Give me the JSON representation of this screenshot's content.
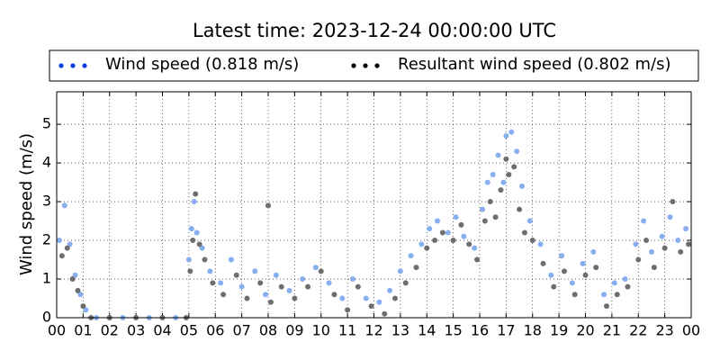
{
  "chart_data": {
    "type": "scatter",
    "title": "Latest time: 2023-12-24 00:00:00 UTC",
    "ylabel": "Wind speed (m/s)",
    "xlim": [
      0,
      24
    ],
    "ylim": [
      0,
      5.84
    ],
    "xticks": [
      {
        "value": 0,
        "label": "00"
      },
      {
        "value": 1,
        "label": "01"
      },
      {
        "value": 2,
        "label": "02"
      },
      {
        "value": 3,
        "label": "03"
      },
      {
        "value": 4,
        "label": "04"
      },
      {
        "value": 5,
        "label": "05"
      },
      {
        "value": 6,
        "label": "06"
      },
      {
        "value": 7,
        "label": "07"
      },
      {
        "value": 8,
        "label": "08"
      },
      {
        "value": 9,
        "label": "09"
      },
      {
        "value": 10,
        "label": "10"
      },
      {
        "value": 11,
        "label": "11"
      },
      {
        "value": 12,
        "label": "12"
      },
      {
        "value": 13,
        "label": "13"
      },
      {
        "value": 14,
        "label": "14"
      },
      {
        "value": 15,
        "label": "15"
      },
      {
        "value": 16,
        "label": "16"
      },
      {
        "value": 17,
        "label": "17"
      },
      {
        "value": 18,
        "label": "18"
      },
      {
        "value": 19,
        "label": "19"
      },
      {
        "value": 20,
        "label": "20"
      },
      {
        "value": 21,
        "label": "21"
      },
      {
        "value": 22,
        "label": "22"
      },
      {
        "value": 23,
        "label": "23"
      },
      {
        "value": 24,
        "label": "00"
      }
    ],
    "yticks": [
      0,
      1,
      2,
      3,
      4,
      5
    ],
    "grid": true,
    "series": [
      {
        "name": "Wind speed (0.818 m/s)",
        "color": "#0a3ee0",
        "point_color": "#86aef0",
        "x": [
          0.1,
          0.3,
          0.5,
          0.7,
          0.9,
          1.1,
          1.5,
          2.5,
          3.5,
          4.5,
          5.0,
          5.1,
          5.2,
          5.3,
          5.5,
          5.8,
          6.2,
          6.6,
          7.0,
          7.5,
          7.9,
          8.0,
          8.3,
          8.8,
          9.3,
          9.8,
          10.3,
          10.8,
          11.2,
          11.7,
          12.2,
          12.6,
          13.0,
          13.4,
          13.8,
          14.1,
          14.4,
          14.8,
          15.1,
          15.4,
          15.8,
          16.1,
          16.3,
          16.5,
          16.7,
          16.9,
          17.0,
          17.2,
          17.4,
          17.6,
          17.9,
          18.3,
          18.7,
          19.1,
          19.5,
          19.9,
          20.3,
          20.7,
          21.1,
          21.5,
          21.9,
          22.2,
          22.5,
          22.9,
          23.2,
          23.5,
          23.8
        ],
        "values": [
          2.0,
          2.9,
          1.9,
          1.1,
          0.6,
          0.2,
          0,
          0,
          0,
          0,
          1.5,
          2.3,
          3.0,
          2.2,
          1.8,
          1.2,
          0.9,
          1.5,
          0.8,
          1.2,
          0.6,
          2.9,
          1.1,
          0.7,
          1.0,
          1.3,
          0.9,
          0.5,
          1.0,
          0.5,
          0.4,
          0.7,
          1.2,
          1.6,
          1.9,
          2.3,
          2.5,
          2.2,
          2.6,
          2.1,
          1.8,
          2.8,
          3.5,
          3.7,
          4.2,
          3.5,
          4.7,
          4.8,
          4.3,
          3.4,
          2.5,
          1.9,
          1.1,
          1.6,
          0.9,
          1.4,
          1.7,
          0.6,
          0.9,
          1.0,
          1.9,
          2.5,
          1.7,
          2.1,
          2.6,
          2.0,
          2.3
        ]
      },
      {
        "name": "Resultant wind speed (0.802 m/s)",
        "color": "#000000",
        "point_color": "#6e6e6e",
        "x": [
          0.2,
          0.4,
          0.6,
          0.8,
          1.0,
          1.3,
          2.0,
          3.0,
          4.0,
          4.9,
          5.05,
          5.15,
          5.25,
          5.4,
          5.6,
          5.9,
          6.3,
          6.8,
          7.2,
          7.7,
          8.0,
          8.1,
          8.5,
          9.0,
          9.5,
          10.0,
          10.5,
          11.0,
          11.4,
          11.9,
          12.4,
          12.8,
          13.2,
          13.6,
          14.0,
          14.3,
          14.6,
          15.0,
          15.3,
          15.6,
          15.9,
          16.2,
          16.4,
          16.6,
          16.8,
          17.0,
          17.1,
          17.3,
          17.5,
          17.7,
          18.0,
          18.4,
          18.8,
          19.2,
          19.6,
          20.0,
          20.4,
          20.8,
          21.2,
          21.6,
          22.0,
          22.3,
          22.6,
          23.0,
          23.3,
          23.6,
          23.9
        ],
        "values": [
          1.6,
          1.8,
          1.0,
          0.7,
          0.3,
          0,
          0,
          0,
          0,
          0,
          1.2,
          2.0,
          3.2,
          1.9,
          1.5,
          0.9,
          0.6,
          1.1,
          0.5,
          0.9,
          2.9,
          0.4,
          0.8,
          0.5,
          0.8,
          1.2,
          0.6,
          0.2,
          0.8,
          0.3,
          0.1,
          0.5,
          0.9,
          1.3,
          1.8,
          2.0,
          2.2,
          2.0,
          2.4,
          1.9,
          1.5,
          2.5,
          3.0,
          2.6,
          3.3,
          4.1,
          3.7,
          3.9,
          2.8,
          2.2,
          2.0,
          1.4,
          0.8,
          1.2,
          0.6,
          1.1,
          1.3,
          0.3,
          0.6,
          0.8,
          1.5,
          2.0,
          1.3,
          1.8,
          3.0,
          1.7,
          1.9
        ]
      }
    ]
  }
}
